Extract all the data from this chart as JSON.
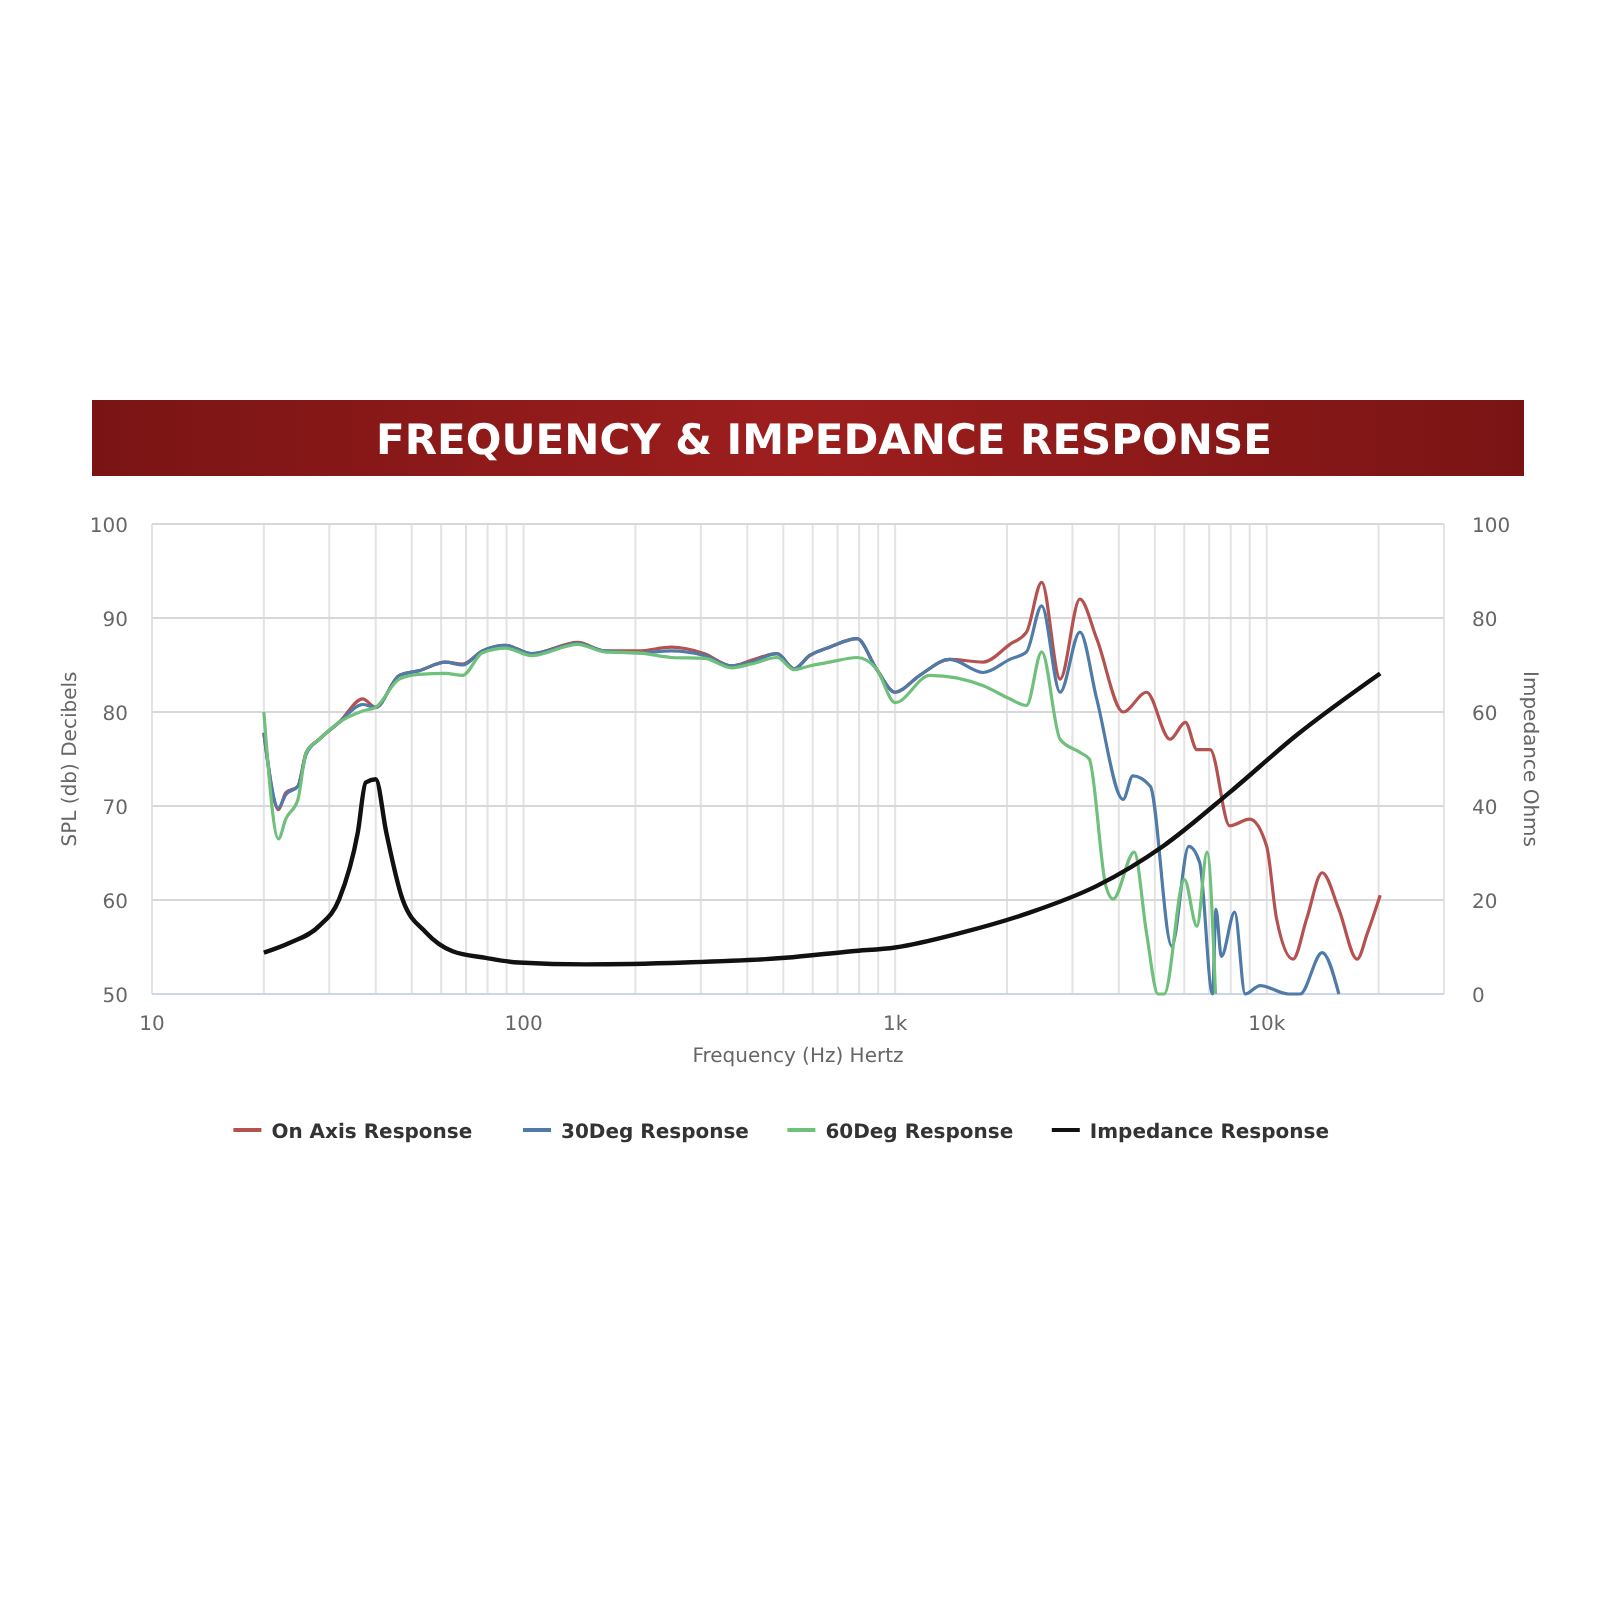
{
  "chart_data": {
    "type": "line",
    "title": "FREQUENCY & IMPEDANCE RESPONSE",
    "xlabel": "Frequency (Hz) Hertz",
    "ylabel": "SPL (db) Decibels",
    "y2label": "Impedance Ohms",
    "log": "x",
    "grid": true,
    "legend": "bottom",
    "line_style": "solid",
    "xlim": [
      10,
      30000
    ],
    "xticks": [
      10,
      100,
      {
        "value": 1000,
        "label": "1k"
      },
      {
        "value": 10000,
        "label": "10k"
      }
    ],
    "ylim": [
      50,
      100
    ],
    "yticks": [
      50,
      60,
      70,
      80,
      90,
      100
    ],
    "y2lim": [
      0,
      100
    ],
    "y2ticks": [
      0,
      20,
      40,
      60,
      80,
      100
    ],
    "series": [
      {
        "name": "On Axis Response",
        "color": "#b5524f",
        "x": [
          20,
          21.9,
          22.9,
          24.7,
          26,
          28.2,
          31.9,
          36.9,
          40,
          46.3,
          52.4,
          61.6,
          68.5,
          77.5,
          89.5,
          105,
          140,
          165,
          204,
          250,
          307,
          363,
          410,
          481,
          535,
          588,
          666,
          790,
          890,
          1000,
          1165,
          1403,
          1726,
          2035,
          2257,
          2480,
          2779,
          3142,
          3487,
          4108,
          4748,
          5490,
          6040,
          6490,
          7045,
          7950,
          9000,
          10000,
          10630,
          11770,
          12810,
          14100,
          15640,
          17510,
          18670,
          20200
        ],
        "values": [
          77.8,
          69.6,
          71.4,
          72.1,
          75.7,
          77.1,
          78.9,
          81.4,
          80.5,
          83.9,
          84.4,
          85.3,
          85.1,
          86.5,
          87.1,
          86.2,
          87.4,
          86.5,
          86.5,
          86.9,
          86.2,
          84.9,
          85.5,
          86.2,
          84.6,
          86,
          86.9,
          87.8,
          84.6,
          82.1,
          83.9,
          85.6,
          85.3,
          87.2,
          88.5,
          93.8,
          83.5,
          92,
          87.8,
          80,
          82.1,
          77.1,
          78.9,
          76,
          76,
          67.9,
          68.6,
          65.7,
          58,
          53.7,
          58,
          62.9,
          59,
          53.7,
          56.5,
          60.5
        ]
      },
      {
        "name": "30Deg Response",
        "color": "#4f7ba8",
        "x": [
          20,
          21.9,
          22.9,
          24.7,
          26,
          28.2,
          31.9,
          36.9,
          40,
          46.3,
          52.4,
          61.6,
          68.5,
          77.5,
          89.5,
          105,
          140,
          165,
          204,
          250,
          307,
          363,
          410,
          481,
          535,
          588,
          666,
          790,
          890,
          1000,
          1165,
          1403,
          1726,
          2035,
          2257,
          2480,
          2779,
          3142,
          3487,
          4108,
          4360,
          4860,
          5550,
          6170,
          6600,
          7150,
          7300,
          7550,
          8200,
          8750,
          9600,
          11450,
          12300,
          14100,
          15640
        ],
        "values": [
          77.8,
          69.8,
          71.2,
          72.1,
          75.5,
          77.1,
          78.9,
          80.8,
          80.5,
          83.9,
          84.4,
          85.3,
          85,
          86.5,
          87.1,
          86.2,
          87.3,
          86.5,
          86.3,
          86.5,
          86,
          84.9,
          85.3,
          86.2,
          84.6,
          86,
          86.9,
          87.8,
          84.6,
          82.1,
          83.9,
          85.6,
          84.2,
          85.6,
          86.4,
          91.3,
          82.1,
          88.5,
          81.4,
          70.7,
          73.2,
          72.1,
          55.1,
          65.7,
          64,
          50,
          59,
          54,
          58.7,
          50,
          50.9,
          50,
          50,
          54.4,
          50
        ]
      },
      {
        "name": "60Deg Response",
        "color": "#6ec07a",
        "x": [
          20,
          21.9,
          22.9,
          24.7,
          26,
          28.2,
          31.9,
          36.9,
          40,
          46.3,
          52.4,
          61.6,
          68.5,
          77.5,
          89.5,
          105,
          140,
          165,
          204,
          250,
          307,
          363,
          410,
          481,
          535,
          588,
          666,
          790,
          890,
          1000,
          1240,
          1726,
          2035,
          2257,
          2480,
          2779,
          3142,
          3330,
          3690,
          3860,
          4400,
          4748,
          5100,
          5300,
          6000,
          6490,
          6910,
          7280
        ],
        "values": [
          80,
          66.5,
          68.6,
          70.7,
          75.7,
          77.1,
          78.9,
          80.1,
          80.5,
          83.5,
          84,
          84.1,
          83.9,
          86.3,
          86.8,
          86,
          87.2,
          86.4,
          86.3,
          85.8,
          85.7,
          84.7,
          85.1,
          85.8,
          84.5,
          84.9,
          85.3,
          85.8,
          84.6,
          81,
          83.9,
          82.8,
          81.4,
          80.7,
          86.4,
          77.1,
          75.7,
          75,
          61.5,
          60.1,
          65.1,
          56.5,
          50,
          50,
          62.2,
          57.2,
          65.1,
          50
        ]
      },
      {
        "name": "Impedance Response",
        "color": "#111111",
        "axis": "y2",
        "x": [
          20,
          23.5,
          28.2,
          31.9,
          35.8,
          37.6,
          40,
          42.7,
          47.2,
          54.6,
          64.4,
          79.1,
          97,
          147,
          272,
          506,
          765,
          1000,
          1520,
          2300,
          3490,
          5270,
          7950,
          12000,
          20200
        ],
        "values": [
          8.8,
          10.9,
          14.5,
          20.2,
          34.4,
          45,
          45.7,
          34.4,
          20.2,
          13.1,
          9.1,
          7.7,
          6.7,
          6.3,
          6.7,
          7.7,
          9.1,
          9.9,
          13.1,
          17.3,
          23,
          31.5,
          42.9,
          55,
          68.2
        ]
      }
    ]
  }
}
